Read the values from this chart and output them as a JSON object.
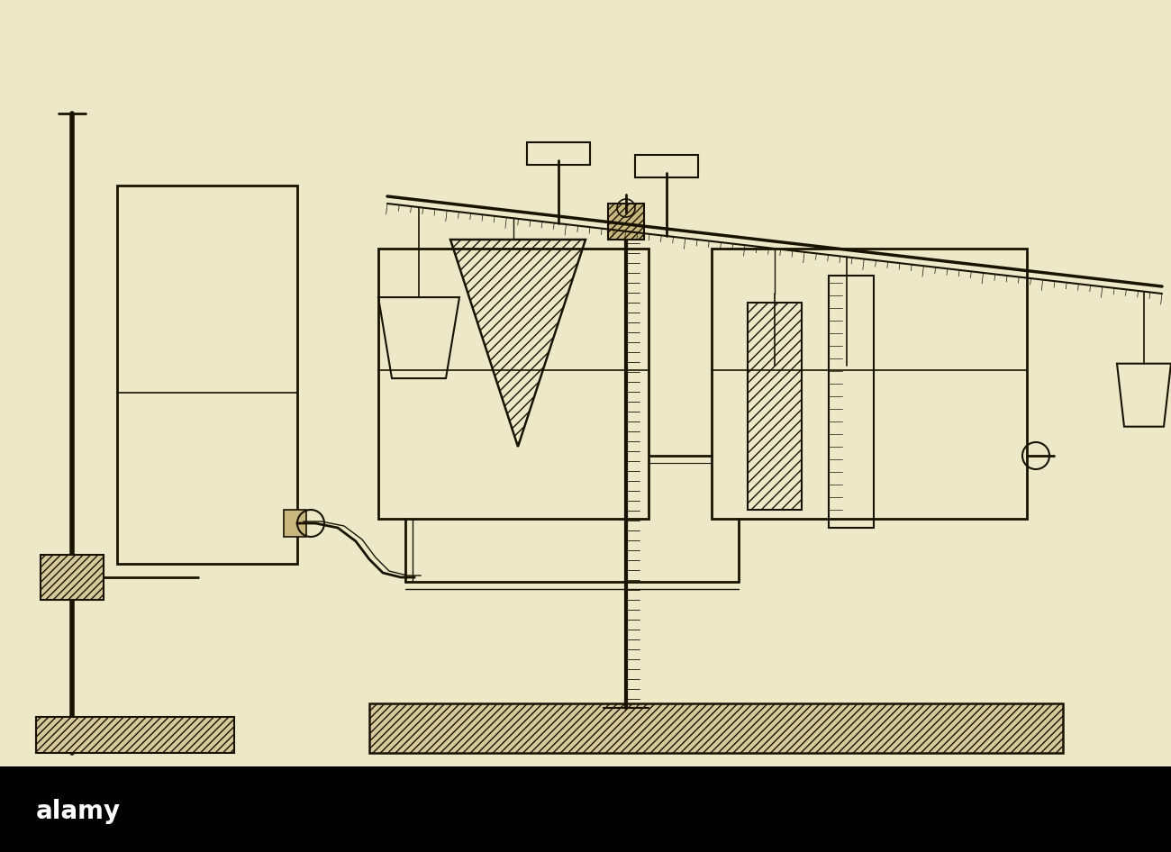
{
  "bg_color": "#ede8c8",
  "line_color": "#1a1200",
  "fig_w": 13.0,
  "fig_h": 9.46,
  "dpi": 100
}
